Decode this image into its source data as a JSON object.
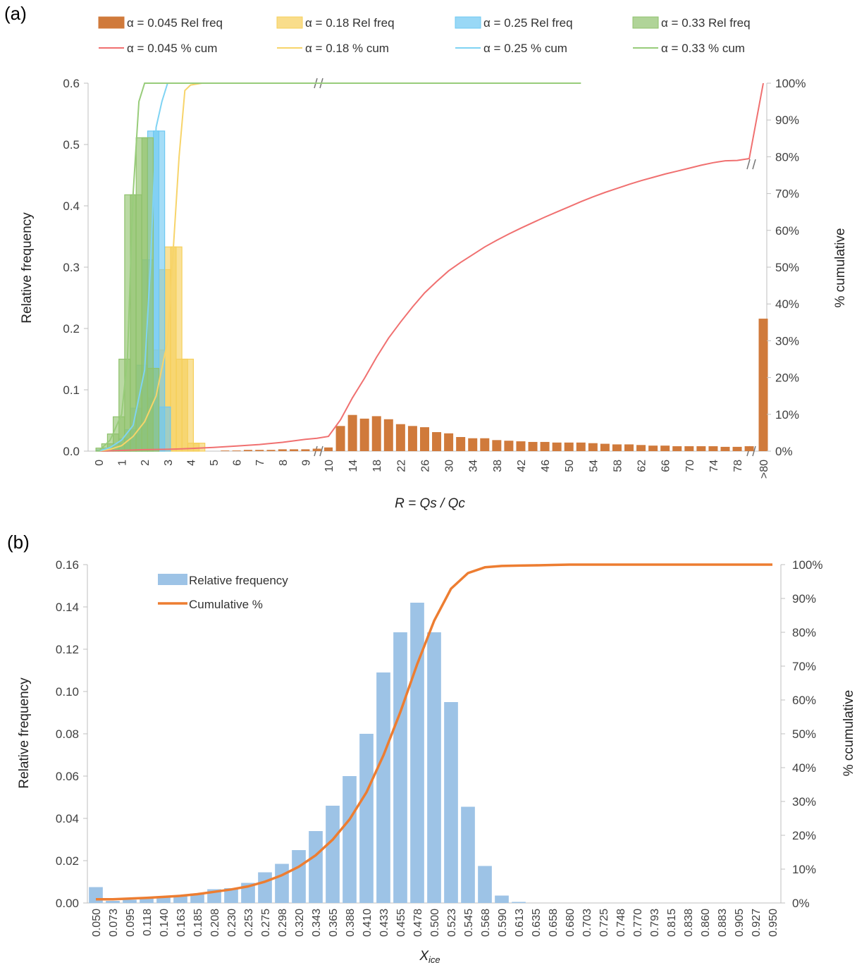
{
  "panel_a": {
    "label": "(a)",
    "chart_data": {
      "type": "bar",
      "xlabel": "R = Qs / Qc",
      "ylabel": "Relative frequency",
      "y2label": "% cumulative",
      "ylim": [
        0,
        0.6
      ],
      "y2lim": [
        0,
        100
      ],
      "yticks": [
        "0.0",
        "0.1",
        "0.2",
        "0.3",
        "0.4",
        "0.5",
        "0.6"
      ],
      "y2ticks": [
        "0%",
        "10%",
        "20%",
        "30%",
        "40%",
        "50%",
        "60%",
        "70%",
        "80%",
        "90%",
        "100%"
      ],
      "x_tick_labels": [
        "0",
        "1",
        "2",
        "3",
        "4",
        "5",
        "6",
        "7",
        "8",
        "9",
        "10",
        "14",
        "18",
        "22",
        "26",
        "30",
        "34",
        "38",
        "42",
        "46",
        "50",
        "54",
        "58",
        "62",
        "66",
        "70",
        "74",
        "78",
        ">80"
      ],
      "legend_position": "top",
      "bar_series": [
        {
          "name": "α = 0.045 Rel freq",
          "color": "#d07a3b",
          "x": [
            5.5,
            6,
            6.5,
            7,
            7.5,
            8,
            8.5,
            9,
            9.5,
            10,
            12,
            14,
            16,
            18,
            20,
            22,
            24,
            26,
            28,
            30,
            32,
            34,
            36,
            38,
            40,
            42,
            44,
            46,
            48,
            50,
            52,
            54,
            56,
            58,
            60,
            62,
            64,
            66,
            68,
            70,
            72,
            74,
            76,
            78,
            80,
            ">80"
          ],
          "values": [
            0.001,
            0.001,
            0.002,
            0.002,
            0.002,
            0.003,
            0.003,
            0.003,
            0.004,
            0.006,
            0.041,
            0.059,
            0.053,
            0.057,
            0.052,
            0.044,
            0.041,
            0.039,
            0.031,
            0.029,
            0.023,
            0.021,
            0.021,
            0.018,
            0.017,
            0.016,
            0.015,
            0.015,
            0.014,
            0.014,
            0.014,
            0.013,
            0.012,
            0.011,
            0.011,
            0.01,
            0.009,
            0.009,
            0.008,
            0.008,
            0.008,
            0.008,
            0.007,
            0.007,
            0.008,
            0.216
          ]
        },
        {
          "name": "α = 0.18 Rel freq",
          "color": "#f6cf5a",
          "x": [
            0.25,
            0.5,
            0.75,
            1,
            1.25,
            1.5,
            1.75,
            2,
            2.25,
            2.5,
            2.75,
            3,
            3.25,
            3.5,
            3.75,
            4,
            4.25,
            4.5
          ],
          "values": [
            0.001,
            0.002,
            0.003,
            0.006,
            0.009,
            0.012,
            0.018,
            0.028,
            0.045,
            0.087,
            0.165,
            0.296,
            0.333,
            0.333,
            0.15,
            0.15,
            0.013,
            0.013
          ]
        },
        {
          "name": "α = 0.25 Rel freq",
          "color": "#6ec8f2",
          "x": [
            0.25,
            0.5,
            0.75,
            1,
            1.25,
            1.5,
            1.75,
            2,
            2.25,
            2.5,
            2.75,
            3
          ],
          "values": [
            0.002,
            0.003,
            0.006,
            0.012,
            0.02,
            0.035,
            0.07,
            0.14,
            0.312,
            0.522,
            0.522,
            0.072
          ]
        },
        {
          "name": "α = 0.33 Rel freq",
          "color": "#8fc26c",
          "x": [
            0.25,
            0.5,
            0.75,
            1,
            1.25,
            1.5,
            1.75,
            2,
            2.25,
            2.5
          ],
          "values": [
            0.005,
            0.012,
            0.028,
            0.056,
            0.15,
            0.418,
            0.418,
            0.511,
            0.511,
            0.135
          ]
        }
      ],
      "line_series": [
        {
          "name": "α = 0.045 % cum",
          "color": "#f07070",
          "x": [
            0,
            1,
            2,
            3,
            4,
            5,
            6,
            7,
            8,
            9,
            9.5,
            10,
            12,
            14,
            16,
            18,
            20,
            22,
            24,
            26,
            28,
            30,
            32,
            34,
            36,
            38,
            40,
            42,
            44,
            46,
            48,
            50,
            52,
            54,
            56,
            58,
            60,
            62,
            64,
            66,
            68,
            70,
            72,
            74,
            76,
            78,
            80,
            ">80"
          ],
          "values": [
            0,
            0.2,
            0.4,
            0.5,
            0.7,
            1.0,
            1.4,
            1.8,
            2.4,
            3.2,
            3.5,
            4,
            8.5,
            14.5,
            19.8,
            25.5,
            30.7,
            35.1,
            39.2,
            43,
            46.1,
            49,
            51.3,
            53.4,
            55.5,
            57.3,
            59,
            60.6,
            62.1,
            63.6,
            65,
            66.4,
            67.8,
            69.1,
            70.3,
            71.4,
            72.5,
            73.5,
            74.4,
            75.3,
            76.1,
            76.9,
            77.7,
            78.4,
            78.9,
            79,
            79.5,
            100
          ]
        },
        {
          "name": "α = 0.18 % cum",
          "color": "#f7d46a",
          "x": [
            0,
            0.5,
            1,
            1.5,
            2,
            2.5,
            3,
            3.25,
            3.5,
            3.75,
            4,
            4.5,
            5
          ],
          "values": [
            0,
            0.5,
            1.5,
            4,
            8,
            15,
            30,
            55,
            80,
            98,
            99.5,
            100,
            100
          ]
        },
        {
          "name": "α = 0.25 % cum",
          "color": "#7fd3f3",
          "x": [
            0,
            0.5,
            1,
            1.5,
            2,
            2.25,
            2.5,
            2.75,
            3
          ],
          "values": [
            0,
            1,
            3,
            7,
            22,
            50,
            88,
            95,
            100
          ]
        },
        {
          "name": "α = 0.33 % cum",
          "color": "#98cc7a",
          "x": [
            0,
            0.5,
            1,
            1.25,
            1.5,
            1.75,
            2,
            2.25,
            2.5,
            52
          ],
          "values": [
            0,
            3,
            10,
            25,
            70,
            95,
            100,
            100,
            100,
            100
          ]
        }
      ]
    }
  },
  "panel_b": {
    "label": "(b)",
    "chart_data": {
      "type": "bar",
      "xlabel": "X",
      "xlabel_sub": "ice",
      "ylabel": "Relative frequency",
      "y2label": "% ccumulative",
      "ylim": [
        0,
        0.16
      ],
      "y2lim": [
        0,
        100
      ],
      "yticks": [
        "0.00",
        "0.02",
        "0.04",
        "0.06",
        "0.08",
        "0.10",
        "0.12",
        "0.14",
        "0.16"
      ],
      "y2ticks": [
        "0%",
        "10%",
        "20%",
        "30%",
        "40%",
        "50%",
        "60%",
        "70%",
        "80%",
        "90%",
        "100%"
      ],
      "legend_position": "top-left",
      "categories": [
        "0.050",
        "0.073",
        "0.095",
        "0.118",
        "0.140",
        "0.163",
        "0.185",
        "0.208",
        "0.230",
        "0.253",
        "0.275",
        "0.298",
        "0.320",
        "0.343",
        "0.365",
        "0.388",
        "0.410",
        "0.433",
        "0.455",
        "0.478",
        "0.500",
        "0.523",
        "0.545",
        "0.568",
        "0.590",
        "0.613",
        "0.635",
        "0.658",
        "0.680",
        "0.703",
        "0.725",
        "0.748",
        "0.770",
        "0.793",
        "0.815",
        "0.838",
        "0.860",
        "0.883",
        "0.905",
        "0.927",
        "0.950"
      ],
      "series": [
        {
          "name": "Relative frequency",
          "color": "#9dc3e6",
          "values": [
            0.0075,
            0.001,
            0.0015,
            0.002,
            0.0025,
            0.0035,
            0.0045,
            0.0065,
            0.007,
            0.0095,
            0.0145,
            0.0185,
            0.025,
            0.034,
            0.046,
            0.06,
            0.08,
            0.109,
            0.128,
            0.142,
            0.128,
            0.095,
            0.0455,
            0.0175,
            0.0035,
            0.0005,
            0,
            0,
            0,
            0,
            0,
            0,
            0,
            0,
            0,
            0,
            0,
            0,
            0,
            0,
            0
          ]
        },
        {
          "name": "Cumulative %",
          "color": "#ed7d31",
          "values": [
            1.1,
            1.1,
            1.3,
            1.5,
            1.8,
            2.1,
            2.6,
            3.3,
            4,
            4.9,
            6.3,
            8.2,
            10.7,
            14.1,
            18.7,
            24.7,
            32.7,
            43.6,
            56.4,
            70.6,
            83.4,
            92.9,
            97.5,
            99.2,
            99.6,
            99.7,
            99.8,
            99.9,
            100,
            100,
            100,
            100,
            100,
            100,
            100,
            100,
            100,
            100,
            100,
            100,
            100
          ]
        }
      ]
    }
  }
}
